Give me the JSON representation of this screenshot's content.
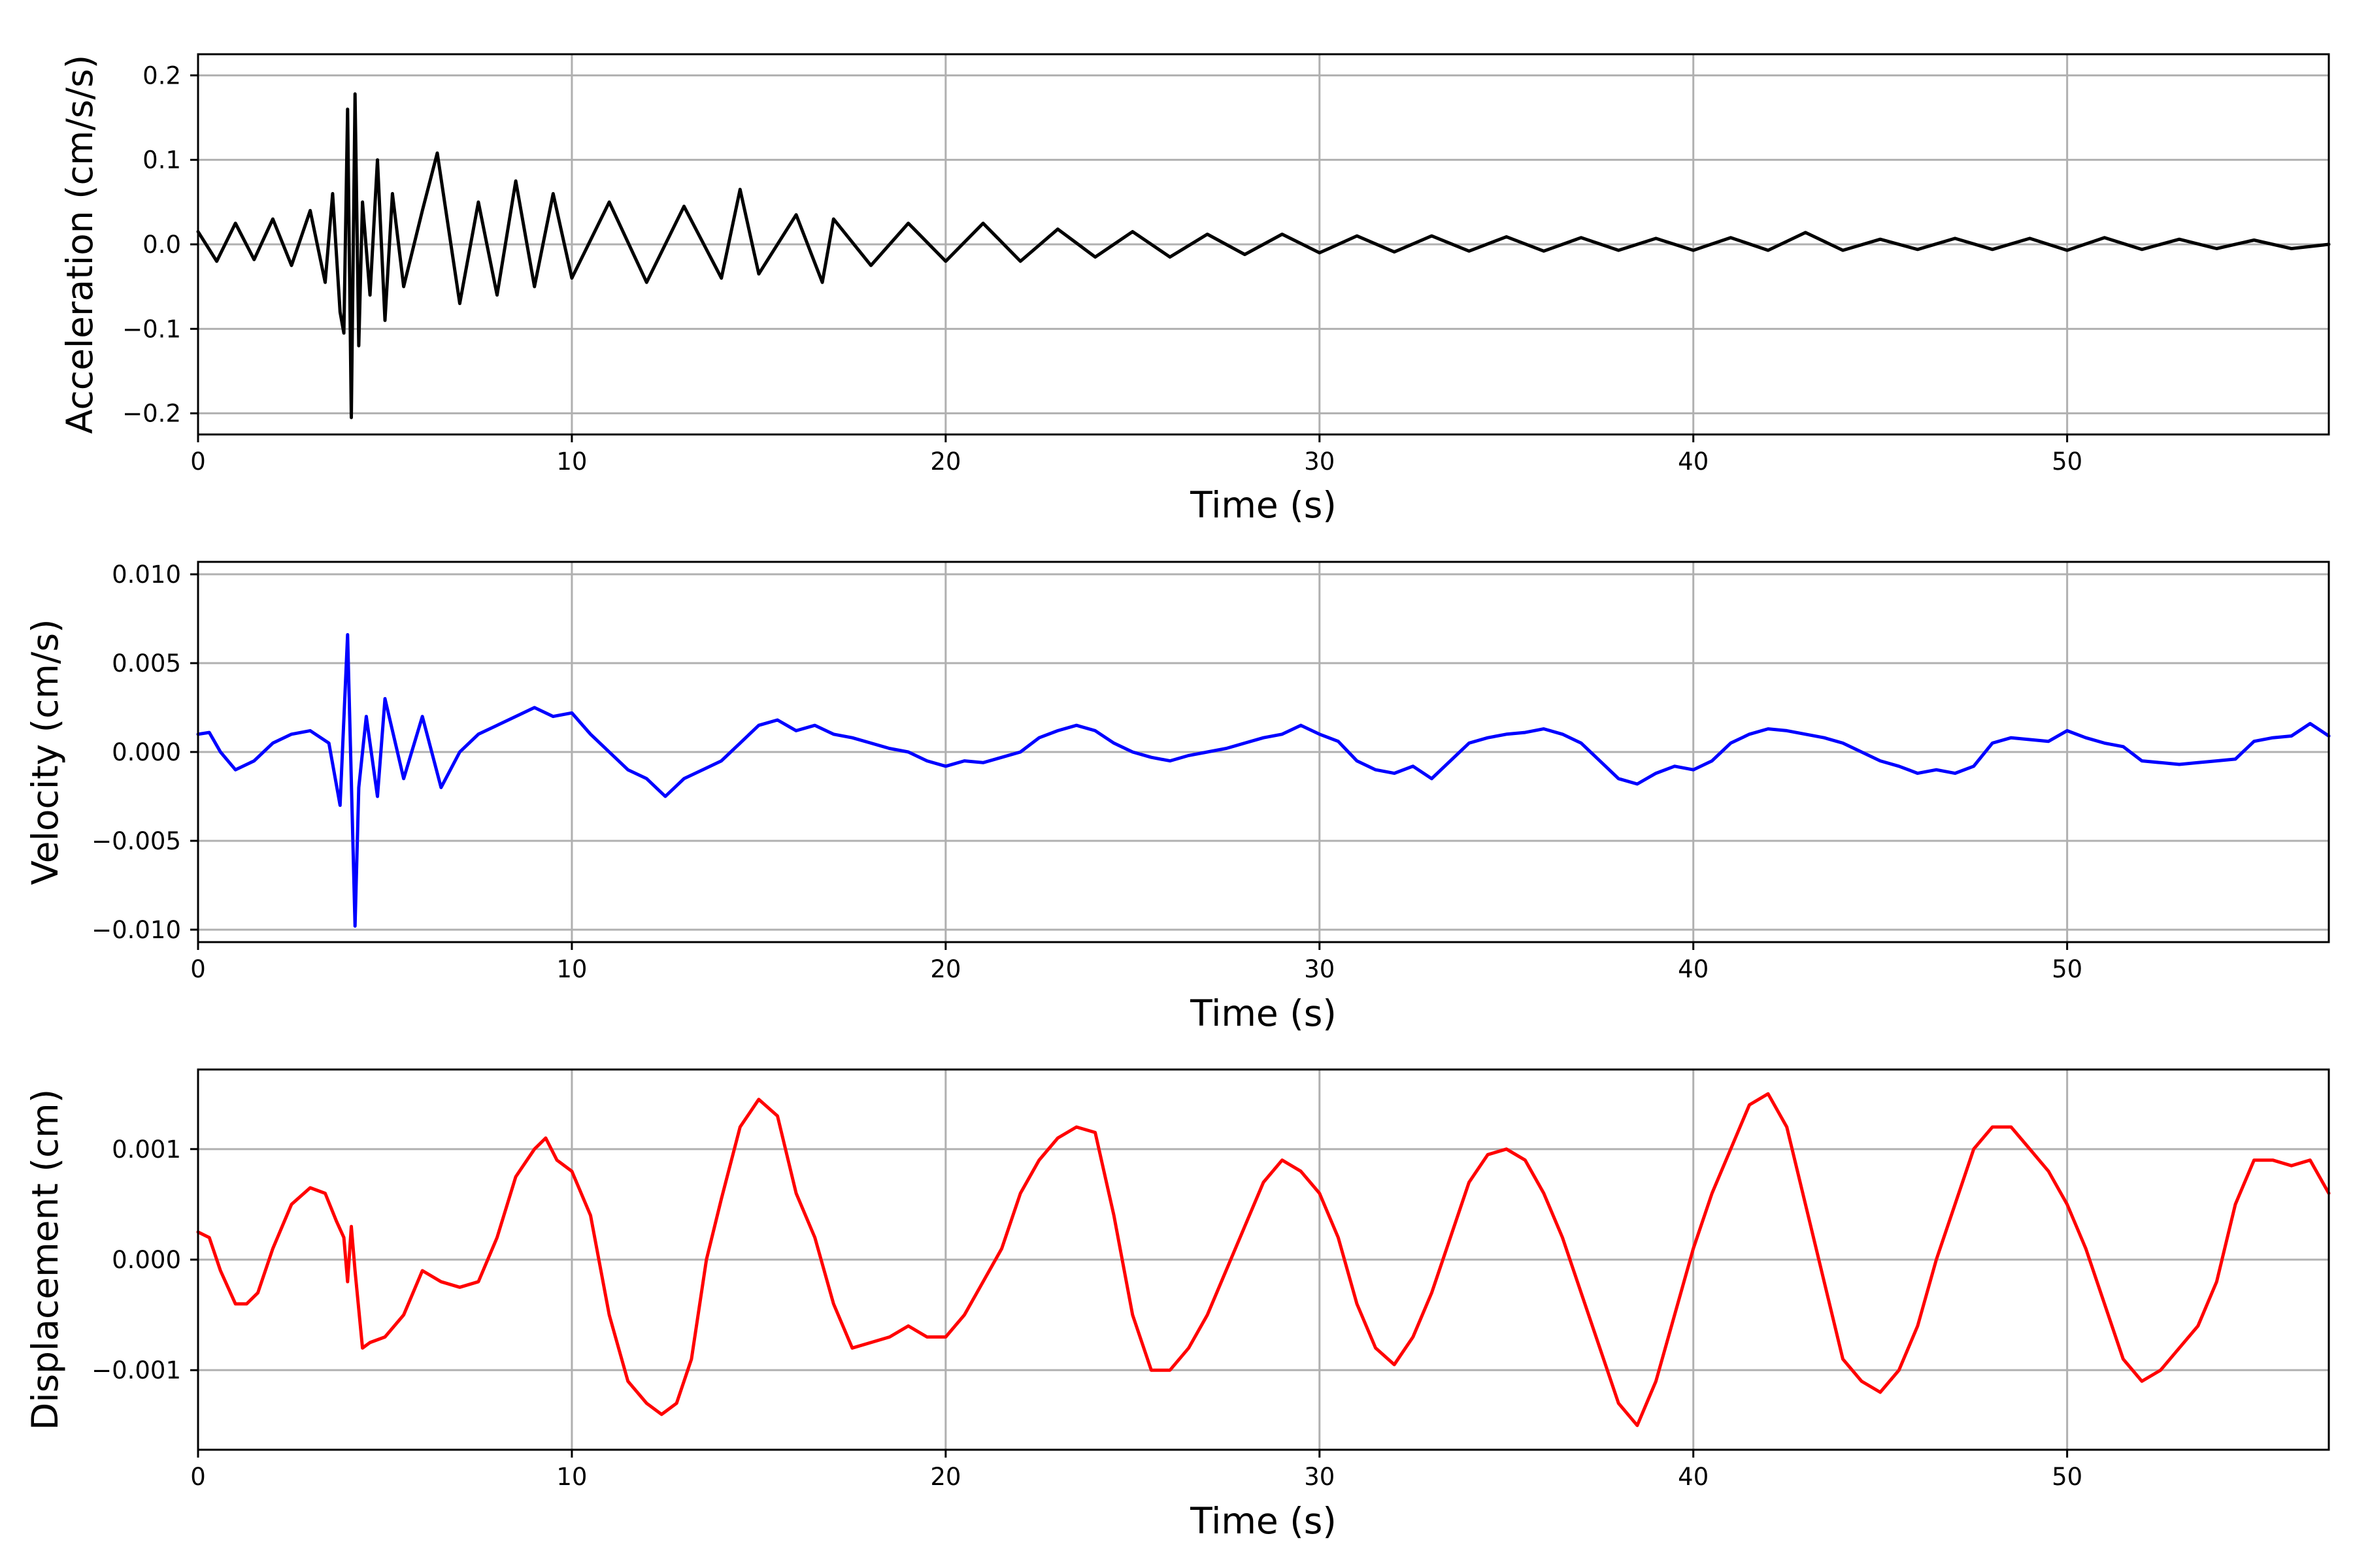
{
  "chart_data": [
    {
      "type": "line",
      "title": "",
      "xlabel": "Time (s)",
      "ylabel": "Acceleration (cm/s/s)",
      "xlim": [
        0,
        57
      ],
      "ylim": [
        -0.225,
        0.225
      ],
      "xticks": [
        0,
        10,
        20,
        30,
        40,
        50
      ],
      "xtick_labels": [
        "0",
        "10",
        "20",
        "30",
        "40",
        "50"
      ],
      "yticks": [
        -0.2,
        -0.1,
        0.0,
        0.1,
        0.2
      ],
      "ytick_labels": [
        "−0.2",
        "−0.1",
        "0.0",
        "0.1",
        "0.2"
      ],
      "grid": true,
      "series": [
        {
          "color": "#000000",
          "x": [
            0,
            0.5,
            1,
            1.5,
            2,
            2.5,
            3,
            3.4,
            3.6,
            3.8,
            3.9,
            4.0,
            4.1,
            4.2,
            4.3,
            4.4,
            4.6,
            4.8,
            5.0,
            5.2,
            5.5,
            6.0,
            6.4,
            7.0,
            7.5,
            8.0,
            8.5,
            9.0,
            9.5,
            10,
            11,
            12,
            13,
            14,
            14.5,
            15,
            16,
            16.7,
            17,
            18,
            19,
            20,
            21,
            22,
            23,
            24,
            25,
            26,
            27,
            28,
            29,
            30,
            31,
            32,
            33,
            34,
            35,
            36,
            37,
            38,
            39,
            40,
            41,
            42,
            43,
            44,
            45,
            46,
            47,
            48,
            49,
            50,
            51,
            52,
            53,
            54,
            55,
            56,
            57
          ],
          "values": [
            0.015,
            -0.02,
            0.025,
            -0.018,
            0.03,
            -0.025,
            0.04,
            -0.045,
            0.06,
            -0.08,
            -0.105,
            0.16,
            -0.205,
            0.178,
            -0.12,
            0.05,
            -0.06,
            0.1,
            -0.09,
            0.06,
            -0.05,
            0.04,
            0.108,
            -0.07,
            0.05,
            -0.06,
            0.075,
            -0.05,
            0.06,
            -0.04,
            0.05,
            -0.045,
            0.045,
            -0.04,
            0.065,
            -0.035,
            0.035,
            -0.045,
            0.03,
            -0.025,
            0.025,
            -0.02,
            0.025,
            -0.02,
            0.018,
            -0.015,
            0.015,
            -0.015,
            0.012,
            -0.012,
            0.012,
            -0.01,
            0.01,
            -0.009,
            0.01,
            -0.008,
            0.009,
            -0.008,
            0.008,
            -0.007,
            0.007,
            -0.007,
            0.008,
            -0.007,
            0.014,
            -0.007,
            0.006,
            -0.006,
            0.007,
            -0.006,
            0.007,
            -0.007,
            0.008,
            -0.006,
            0.006,
            -0.005,
            0.005,
            -0.005,
            0.0
          ]
        }
      ]
    },
    {
      "type": "line",
      "title": "",
      "xlabel": "Time (s)",
      "ylabel": "Velocity (cm/s)",
      "xlim": [
        0,
        57
      ],
      "ylim": [
        -0.0107,
        0.0107
      ],
      "xticks": [
        0,
        10,
        20,
        30,
        40,
        50
      ],
      "xtick_labels": [
        "0",
        "10",
        "20",
        "30",
        "40",
        "50"
      ],
      "yticks": [
        -0.01,
        -0.005,
        0.0,
        0.005,
        0.01
      ],
      "ytick_labels": [
        "−0.010",
        "−0.005",
        "0.000",
        "0.005",
        "0.010"
      ],
      "grid": true,
      "series": [
        {
          "color": "#0000ff",
          "x": [
            0,
            0.3,
            0.6,
            1.0,
            1.5,
            2.0,
            2.5,
            3.0,
            3.5,
            3.8,
            4.0,
            4.2,
            4.3,
            4.5,
            4.8,
            5.0,
            5.5,
            6.0,
            6.5,
            7.0,
            7.5,
            8.0,
            8.5,
            9.0,
            9.5,
            10.0,
            10.5,
            11.0,
            11.5,
            12.0,
            12.5,
            13.0,
            13.5,
            14.0,
            14.5,
            15.0,
            15.5,
            16.0,
            16.5,
            17.0,
            17.5,
            18.0,
            18.5,
            19.0,
            19.5,
            20.0,
            20.5,
            21.0,
            21.5,
            22.0,
            22.5,
            23.0,
            23.5,
            24.0,
            24.5,
            25.0,
            25.5,
            26.0,
            26.5,
            27.0,
            27.5,
            28.0,
            28.5,
            29.0,
            29.5,
            30.0,
            30.5,
            31.0,
            31.5,
            32.0,
            32.5,
            33.0,
            33.5,
            34.0,
            34.5,
            35.0,
            35.5,
            36.0,
            36.5,
            37.0,
            37.5,
            38.0,
            38.5,
            39.0,
            39.5,
            40.0,
            40.5,
            41.0,
            41.5,
            42.0,
            42.5,
            43.0,
            43.5,
            44.0,
            44.5,
            45.0,
            45.5,
            46.0,
            46.5,
            47.0,
            47.5,
            48.0,
            48.5,
            49.0,
            49.5,
            50.0,
            50.5,
            51.0,
            51.5,
            52.0,
            52.5,
            53.0,
            53.5,
            54.0,
            54.5,
            55.0,
            55.5,
            56.0,
            56.5,
            57.0
          ],
          "values": [
            0.001,
            0.0011,
            0.0,
            -0.001,
            -0.0005,
            0.0005,
            0.001,
            0.0012,
            0.0005,
            -0.003,
            0.0066,
            -0.0098,
            -0.002,
            0.002,
            -0.0025,
            0.003,
            -0.0015,
            0.002,
            -0.002,
            0.0,
            0.001,
            0.0015,
            0.002,
            0.0025,
            0.002,
            0.0022,
            0.001,
            0.0,
            -0.001,
            -0.0015,
            -0.0025,
            -0.0015,
            -0.001,
            -0.0005,
            0.0005,
            0.0015,
            0.0018,
            0.0012,
            0.0015,
            0.001,
            0.0008,
            0.0005,
            0.0002,
            0.0,
            -0.0005,
            -0.0008,
            -0.0005,
            -0.0006,
            -0.0003,
            0.0,
            0.0008,
            0.0012,
            0.0015,
            0.0012,
            0.0005,
            0.0,
            -0.0003,
            -0.0005,
            -0.0002,
            0.0,
            0.0002,
            0.0005,
            0.0008,
            0.001,
            0.0015,
            0.001,
            0.0006,
            -0.0005,
            -0.001,
            -0.0012,
            -0.0008,
            -0.0015,
            -0.0005,
            0.0005,
            0.0008,
            0.001,
            0.0011,
            0.0013,
            0.001,
            0.0005,
            -0.0005,
            -0.0015,
            -0.0018,
            -0.0012,
            -0.0008,
            -0.001,
            -0.0005,
            0.0005,
            0.001,
            0.0013,
            0.0012,
            0.001,
            0.0008,
            0.0005,
            0.0,
            -0.0005,
            -0.0008,
            -0.0012,
            -0.001,
            -0.0012,
            -0.0008,
            0.0005,
            0.0008,
            0.0007,
            0.0006,
            0.0012,
            0.0008,
            0.0005,
            0.0003,
            -0.0005,
            -0.0006,
            -0.0007,
            -0.0006,
            -0.0005,
            -0.0004,
            0.0006,
            0.0008,
            0.0009,
            0.0016,
            0.0009
          ]
        }
      ]
    },
    {
      "type": "line",
      "title": "",
      "xlabel": "Time (s)",
      "ylabel": "Displacement (cm)",
      "xlim": [
        0,
        57
      ],
      "ylim": [
        -0.00172,
        0.00172
      ],
      "xticks": [
        0,
        10,
        20,
        30,
        40,
        50
      ],
      "xtick_labels": [
        "0",
        "10",
        "20",
        "30",
        "40",
        "50"
      ],
      "yticks": [
        -0.001,
        0.0,
        0.001
      ],
      "ytick_labels": [
        "−0.001",
        "0.000",
        "0.001"
      ],
      "grid": true,
      "series": [
        {
          "color": "#ff0000",
          "x": [
            0,
            0.3,
            0.6,
            1.0,
            1.3,
            1.6,
            2.0,
            2.5,
            3.0,
            3.4,
            3.7,
            3.9,
            4.0,
            4.1,
            4.2,
            4.4,
            4.6,
            5.0,
            5.5,
            6.0,
            6.5,
            7.0,
            7.5,
            8.0,
            8.5,
            9.0,
            9.3,
            9.6,
            10.0,
            10.5,
            11.0,
            11.5,
            12.0,
            12.4,
            12.8,
            13.2,
            13.6,
            14.0,
            14.5,
            15.0,
            15.5,
            16.0,
            16.5,
            17.0,
            17.5,
            18.0,
            18.5,
            19.0,
            19.5,
            20.0,
            20.5,
            21.0,
            21.5,
            22.0,
            22.5,
            23.0,
            23.5,
            24.0,
            24.5,
            25.0,
            25.5,
            26.0,
            26.5,
            27.0,
            27.5,
            28.0,
            28.5,
            29.0,
            29.5,
            30.0,
            30.5,
            31.0,
            31.5,
            32.0,
            32.5,
            33.0,
            33.5,
            34.0,
            34.5,
            35.0,
            35.5,
            36.0,
            36.5,
            37.0,
            37.5,
            38.0,
            38.5,
            39.0,
            39.5,
            40.0,
            40.5,
            41.0,
            41.5,
            42.0,
            42.5,
            43.0,
            43.5,
            44.0,
            44.5,
            45.0,
            45.5,
            46.0,
            46.5,
            47.0,
            47.5,
            48.0,
            48.5,
            49.0,
            49.5,
            50.0,
            50.5,
            51.0,
            51.5,
            52.0,
            52.5,
            53.0,
            53.5,
            54.0,
            54.5,
            55.0,
            55.5,
            56.0,
            56.5,
            57.0
          ],
          "values": [
            0.00025,
            0.0002,
            -0.0001,
            -0.0004,
            -0.0004,
            -0.0003,
            0.0001,
            0.0005,
            0.00065,
            0.0006,
            0.00035,
            0.0002,
            -0.0002,
            0.0003,
            -0.0001,
            -0.0008,
            -0.00075,
            -0.0007,
            -0.0005,
            -0.0001,
            -0.0002,
            -0.00025,
            -0.0002,
            0.0002,
            0.00075,
            0.001,
            0.0011,
            0.0009,
            0.0008,
            0.0004,
            -0.0005,
            -0.0011,
            -0.0013,
            -0.0014,
            -0.0013,
            -0.0009,
            0.0,
            0.00055,
            0.0012,
            0.00145,
            0.0013,
            0.0006,
            0.0002,
            -0.0004,
            -0.0008,
            -0.00075,
            -0.0007,
            -0.0006,
            -0.0007,
            -0.0007,
            -0.0005,
            -0.0002,
            0.0001,
            0.0006,
            0.0009,
            0.0011,
            0.0012,
            0.00115,
            0.0004,
            -0.0005,
            -0.001,
            -0.001,
            -0.0008,
            -0.0005,
            -0.0001,
            0.0003,
            0.0007,
            0.0009,
            0.0008,
            0.0006,
            0.0002,
            -0.0004,
            -0.0008,
            -0.00095,
            -0.0007,
            -0.0003,
            0.0002,
            0.0007,
            0.00095,
            0.001,
            0.0009,
            0.0006,
            0.0002,
            -0.0003,
            -0.0008,
            -0.0013,
            -0.0015,
            -0.0011,
            -0.0005,
            0.0001,
            0.0006,
            0.001,
            0.0014,
            0.0015,
            0.0012,
            0.0005,
            -0.0002,
            -0.0009,
            -0.0011,
            -0.0012,
            -0.001,
            -0.0006,
            0.0,
            0.0005,
            0.001,
            0.0012,
            0.0012,
            0.001,
            0.0008,
            0.0005,
            0.0001,
            -0.0004,
            -0.0009,
            -0.0011,
            -0.001,
            -0.0008,
            -0.0006,
            -0.0002,
            0.0005,
            0.0009,
            0.0009,
            0.00085,
            0.0009,
            0.0006
          ]
        }
      ]
    }
  ]
}
